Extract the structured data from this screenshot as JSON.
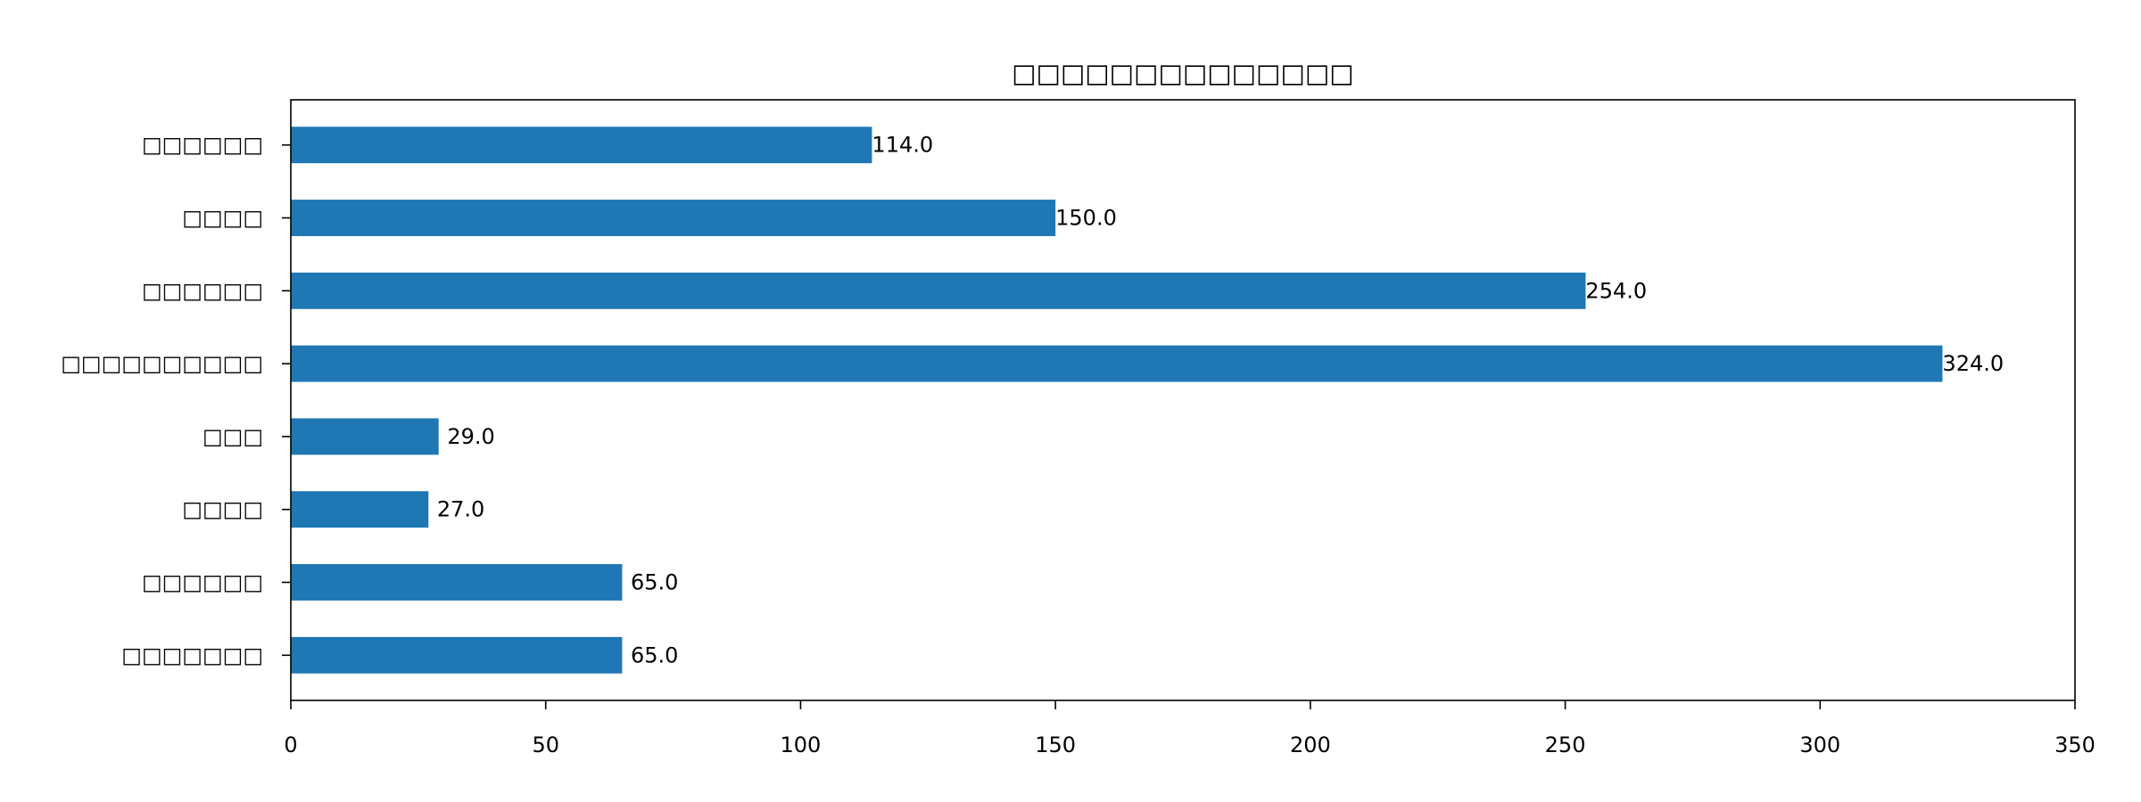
{
  "chart_data": {
    "type": "bar",
    "orientation": "horizontal",
    "title": "□□□□□□□□□□□□□□",
    "categories": [
      "□□□□□□",
      "□□□□",
      "□□□□□□",
      "□□□□□□□□□□",
      "□□□",
      "□□□□",
      "□□□□□□",
      "□□□□□□□"
    ],
    "values": [
      114,
      150,
      254,
      324,
      29,
      27,
      65,
      65
    ],
    "data_labels": [
      "114.0",
      "150.0",
      "254.0",
      "324.0",
      "29.0",
      "27.0",
      "65.0",
      "65.0"
    ],
    "xlim": [
      0,
      350
    ],
    "xticks": [
      "0",
      "50",
      "100",
      "150",
      "200",
      "250",
      "300",
      "350"
    ],
    "grid": false,
    "colors": {
      "bar": "#1f77b4",
      "axis": "#000000"
    }
  }
}
